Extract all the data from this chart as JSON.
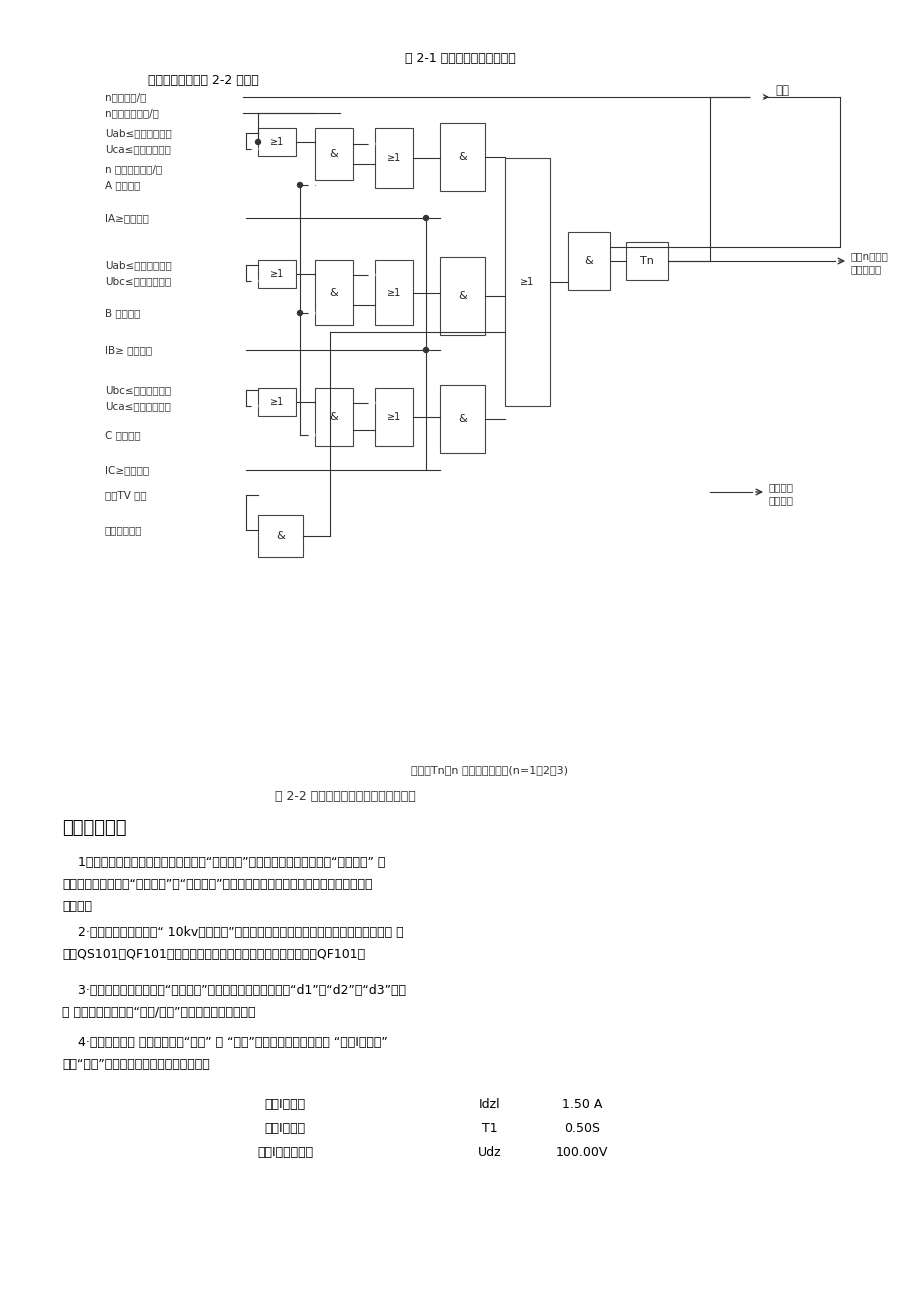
{
  "title_fig21": "图 2-1 方向元件动作区示意图",
  "title_intro": "逻辑原理框图如图 2-2 所示：",
  "caption_fig22": "图 2-2 三段电流电压方向保护原理框图",
  "fig_note": "图中：Tn为n 段过流保护时限(n=1、2、3)",
  "section_title": "三、实验内容",
  "p1_l1": "    1．首先接好控制回路，用导线将端子“合闸回路”两个接线孔短接，将端子“跳闸回路” 两",
  "p1_l2": "个接线孔短接。合上“控制开关”和“电源开关”，使实验装置上电，保护装置得电同时停止按",
  "p1_l3": "鈕灯亮。",
  "p2_l1": "    2·按下启动按鈕，旋转“ 10kv进线电压”转换开关检查系统进线电压是否正常，根据实验 需",
  "p2_l2": "要合QS101、QF101连接线路，实验时保护装置动作时跳开断路器QF101。",
  "p3_l1": "    3·通过实验装置面板上的“故障选择”旋转开关，可选择故障区“d1”、“d2”、“d3”分别",
  "p3_l2": "进 行保护实验。并把“远方/就地”开关都打到就地位置。",
  "p4_l1": "    4·修改保护定値 进入装置菜单“定値” 一 “定値”，输入密码后，进入一 “电流I段保护”",
  "p4_l2": "一按“确认”按鈕，进入定値修改界面，如：",
  "table_rows": [
    [
      "电流I段定値",
      "Idzl",
      "1.50 A"
    ],
    [
      "电流I段时限",
      "T1",
      "0.50S"
    ],
    [
      "电流I段电压定値",
      "Udz",
      "100.00V"
    ]
  ],
  "background_color": "#ffffff",
  "text_color": "#000000",
  "lc": "#333333",
  "labels": [
    "n段保护投/退",
    "n段电压元件投/退",
    "Uab≤电压元件定値",
    "Uca≤电压元件定値",
    "n 段方向元件投/退",
    "A 相正方向",
    "IA≥电流定値",
    "Uab≤电压元件定値",
    "Ubc≤电压元件定値",
    "B 相正方向",
    "IB≥ 电流定値",
    "Ubc≤电压元件定値",
    "Uca≤电压元件定値",
    "C 相正方向",
    "IC≥电流定値",
    "母线TV 断线",
    "相关保护投入"
  ],
  "out_trip": "跳闸",
  "out_display": "过流n段动作",
  "out_display2": "显示、远传",
  "out_protect": "保护动作",
  "out_protect2": "中央信号"
}
